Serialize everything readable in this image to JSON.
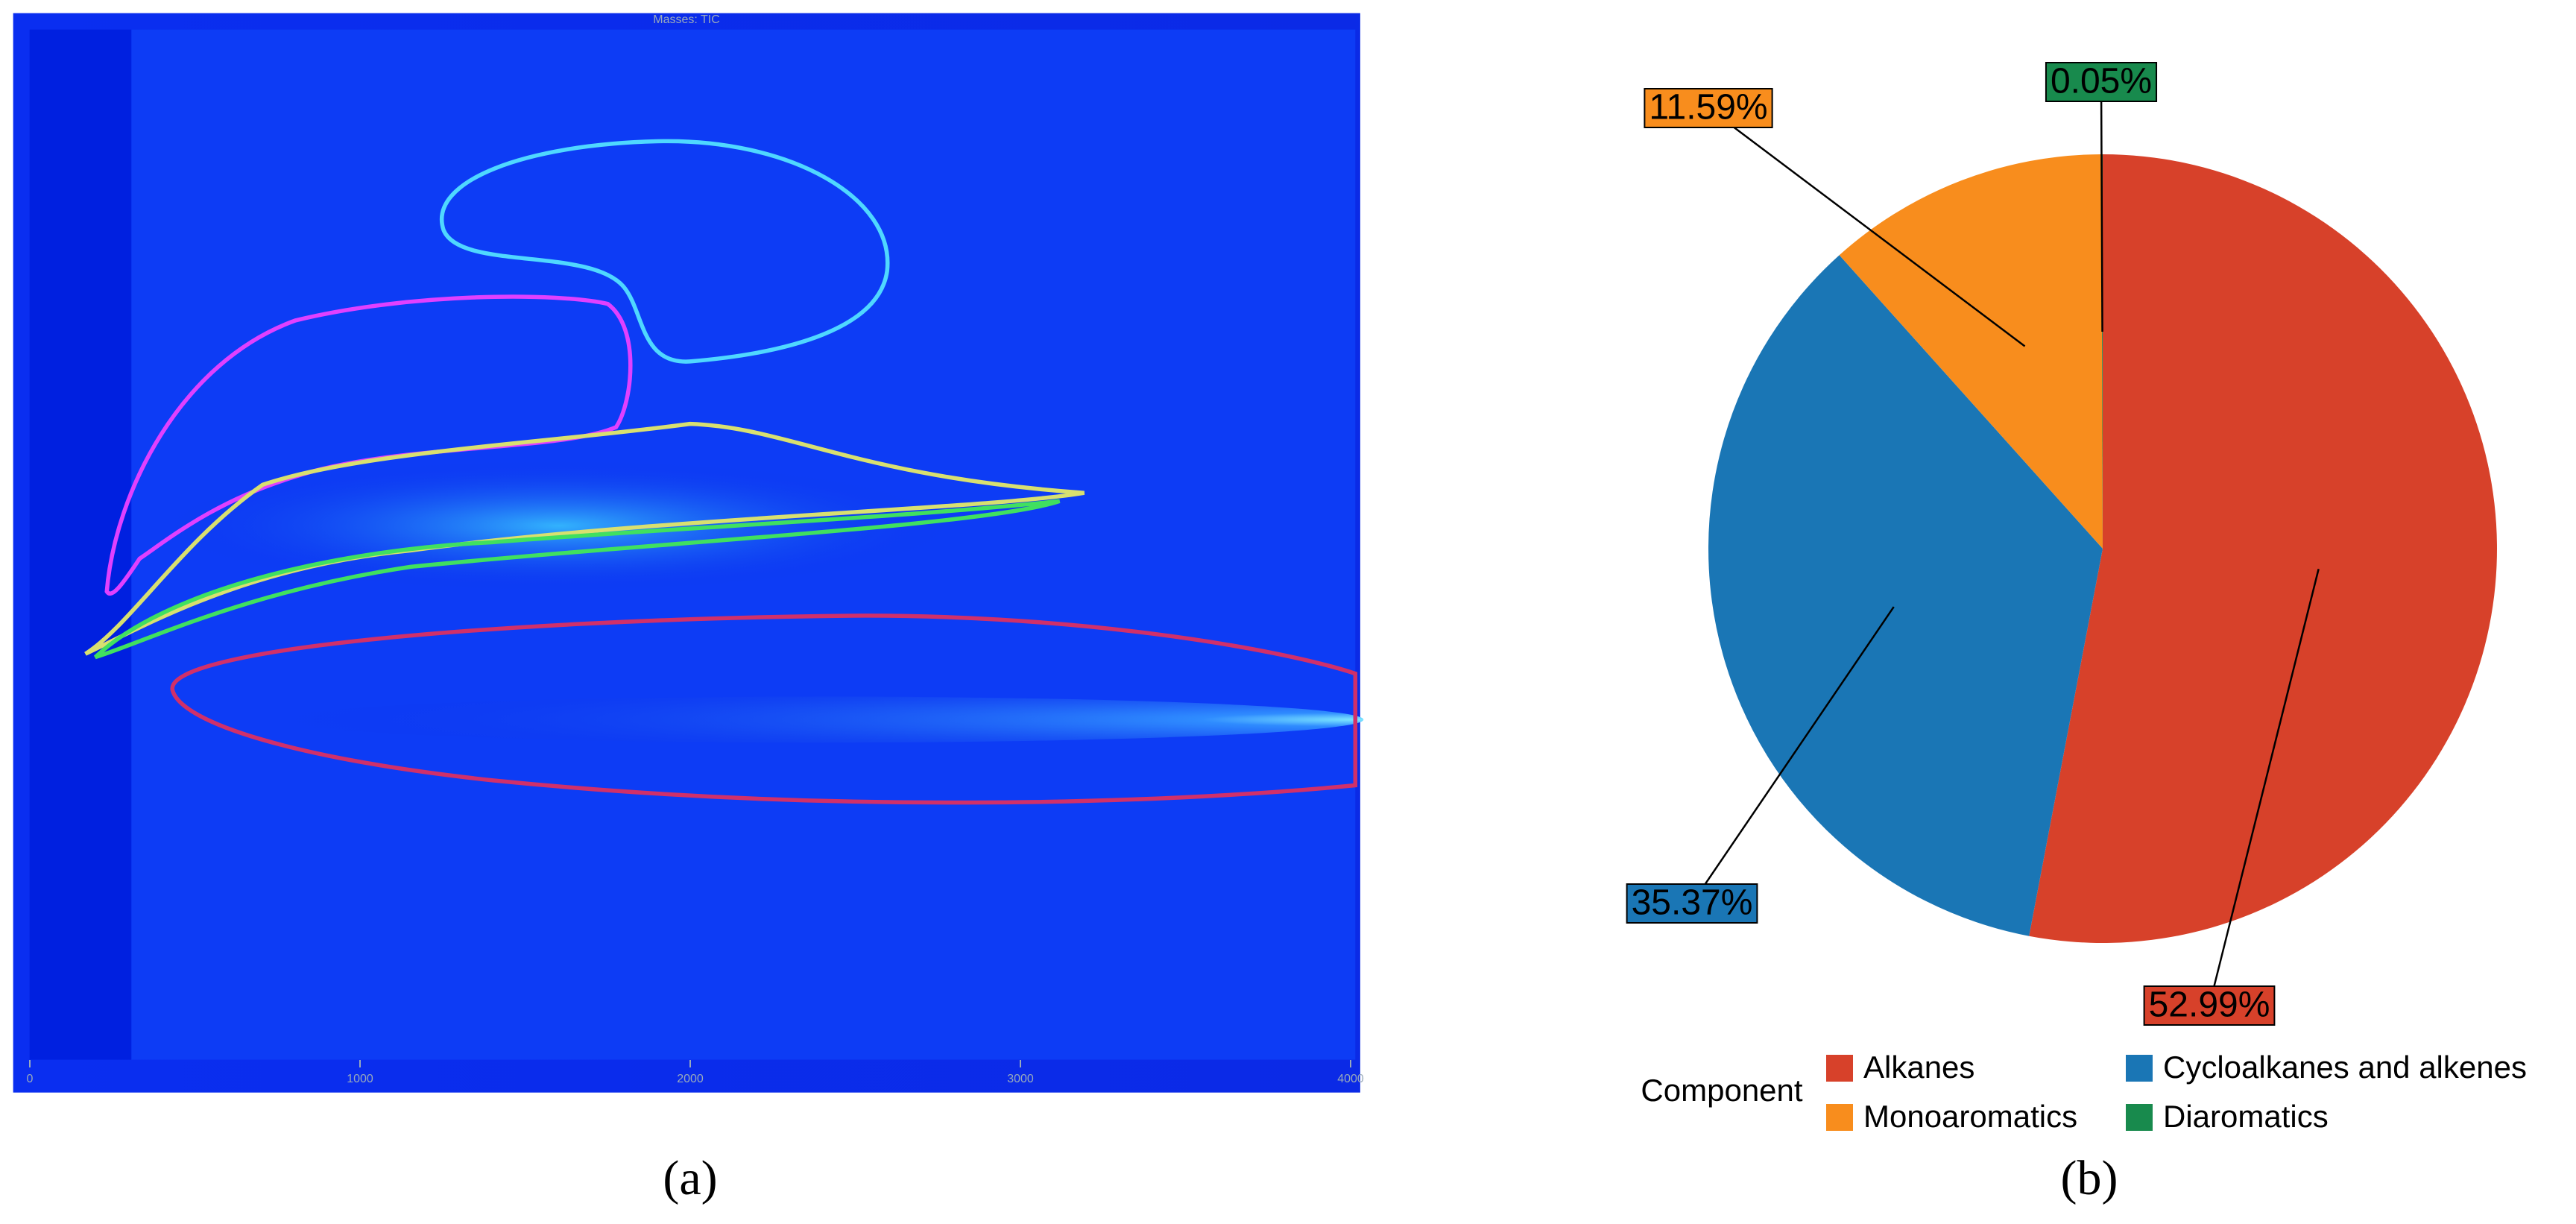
{
  "chart_data": [
    {
      "type": "contour",
      "title": "Masses: TIC",
      "xlim": [
        0,
        4000
      ],
      "xticks": [
        0,
        1000,
        2000,
        3000,
        4000
      ],
      "panel_label": "(a)"
    },
    {
      "type": "pie",
      "panel_label": "(b)",
      "legend_title": "Component",
      "categories": [
        "Alkanes",
        "Cycloalkanes and alkenes",
        "Monoaromatics",
        "Diaromatics"
      ],
      "values": [
        52.99,
        35.37,
        11.59,
        0.05
      ],
      "value_labels": [
        "52.99%",
        "35.37%",
        "11.59%",
        "0.05%"
      ],
      "colors": [
        "#d7412a",
        "#1a76b5",
        "#f88d1d",
        "#188a4d"
      ]
    }
  ]
}
